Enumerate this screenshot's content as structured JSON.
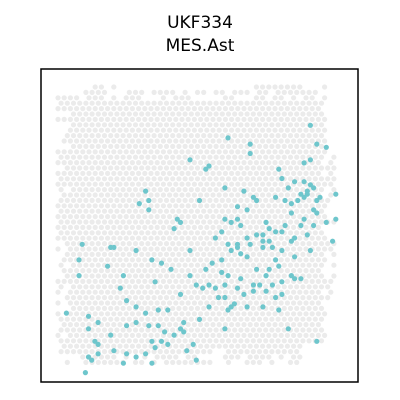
{
  "chart_data": {
    "type": "scatter",
    "title": "UKF334",
    "subtitle": "MES.Ast",
    "xlabel": "",
    "ylabel": "",
    "grid": false,
    "xlim": [
      0,
      100
    ],
    "ylim": [
      0,
      100
    ],
    "colors": {
      "background_spots": "#ebebeb",
      "highlight_spots": "#6ec6cc",
      "frame": "#000000"
    },
    "highlighted_spots": [
      [
        59,
        78
      ],
      [
        80,
        64
      ],
      [
        84,
        60
      ],
      [
        66,
        73
      ],
      [
        31,
        57
      ],
      [
        62,
        56
      ],
      [
        50,
        58
      ],
      [
        34,
        55
      ],
      [
        42,
        49
      ],
      [
        13,
        44
      ],
      [
        22,
        43
      ],
      [
        12,
        39
      ],
      [
        23,
        43
      ],
      [
        38,
        38
      ],
      [
        75,
        68
      ],
      [
        83,
        70
      ],
      [
        79,
        57
      ],
      [
        36,
        32
      ],
      [
        12,
        34
      ],
      [
        26,
        34
      ],
      [
        30,
        24
      ],
      [
        37,
        23
      ],
      [
        47,
        42
      ],
      [
        70,
        47
      ],
      [
        65,
        55
      ],
      [
        63,
        50
      ],
      [
        71,
        51
      ],
      [
        72,
        49
      ],
      [
        70,
        45
      ],
      [
        74,
        48
      ],
      [
        77,
        50
      ],
      [
        79,
        54
      ],
      [
        86,
        50
      ],
      [
        80,
        46
      ],
      [
        58,
        52
      ],
      [
        62,
        52
      ],
      [
        60,
        51
      ],
      [
        57,
        48
      ],
      [
        55,
        46
      ],
      [
        54,
        38
      ],
      [
        52,
        36
      ],
      [
        57,
        35
      ],
      [
        53,
        31
      ],
      [
        62,
        30
      ],
      [
        59,
        34
      ],
      [
        68,
        36
      ],
      [
        72,
        36
      ],
      [
        74,
        39
      ],
      [
        69,
        31
      ],
      [
        63,
        33
      ],
      [
        65,
        40
      ],
      [
        73,
        31
      ],
      [
        76,
        32
      ],
      [
        67,
        31
      ],
      [
        60,
        42
      ],
      [
        62,
        43
      ],
      [
        56,
        27
      ],
      [
        64,
        28
      ],
      [
        61,
        25
      ],
      [
        59,
        23
      ],
      [
        53,
        24
      ],
      [
        58,
        17
      ],
      [
        50,
        20
      ],
      [
        45,
        19
      ],
      [
        42,
        15
      ],
      [
        38,
        13
      ],
      [
        35,
        13
      ],
      [
        27,
        9
      ],
      [
        23,
        10
      ],
      [
        18,
        9
      ],
      [
        16,
        7
      ],
      [
        15,
        8
      ],
      [
        22,
        15
      ],
      [
        18,
        19
      ],
      [
        15,
        17
      ],
      [
        27,
        18
      ],
      [
        30,
        19
      ],
      [
        39,
        16
      ],
      [
        44,
        17
      ],
      [
        46,
        10
      ],
      [
        48,
        12
      ],
      [
        45,
        16
      ],
      [
        34,
        18
      ],
      [
        40,
        12
      ],
      [
        37,
        18
      ],
      [
        40,
        23
      ],
      [
        33,
        22
      ],
      [
        36,
        11
      ],
      [
        33,
        9
      ],
      [
        30,
        8
      ],
      [
        26,
        6
      ],
      [
        35,
        6
      ],
      [
        49,
        7
      ],
      [
        27,
        26
      ],
      [
        25,
        30
      ],
      [
        21,
        37
      ],
      [
        15,
        21
      ],
      [
        18,
        12
      ],
      [
        17,
        13
      ],
      [
        14,
        3
      ],
      [
        8,
        22
      ],
      [
        83,
        59
      ],
      [
        83,
        64
      ],
      [
        84,
        61
      ],
      [
        82,
        60
      ],
      [
        81,
        58
      ],
      [
        74,
        59
      ],
      [
        76,
        65
      ],
      [
        78,
        62
      ],
      [
        77,
        58
      ],
      [
        86,
        62
      ],
      [
        85,
        63
      ],
      [
        87,
        58
      ],
      [
        88,
        59
      ],
      [
        87,
        54
      ],
      [
        86,
        55
      ],
      [
        83,
        52
      ],
      [
        82,
        50
      ],
      [
        84,
        47
      ],
      [
        85,
        42
      ],
      [
        79,
        45
      ],
      [
        80,
        40
      ],
      [
        76,
        42
      ],
      [
        79,
        34
      ],
      [
        80,
        33
      ],
      [
        82,
        33
      ],
      [
        75,
        37
      ],
      [
        71,
        34
      ],
      [
        70,
        43
      ],
      [
        68,
        47
      ],
      [
        90,
        51
      ],
      [
        92,
        45
      ],
      [
        93,
        60
      ],
      [
        93,
        52
      ],
      [
        90,
        75
      ],
      [
        85,
        71
      ],
      [
        87,
        76
      ],
      [
        85,
        82
      ],
      [
        66,
        76
      ],
      [
        52,
        68
      ],
      [
        47,
        71
      ],
      [
        53,
        69
      ],
      [
        58,
        62
      ],
      [
        64,
        61
      ],
      [
        67,
        59
      ],
      [
        68,
        58
      ],
      [
        76,
        48
      ],
      [
        66,
        44
      ],
      [
        62,
        44
      ],
      [
        57,
        39
      ],
      [
        58,
        31
      ],
      [
        72,
        45
      ],
      [
        73,
        43
      ],
      [
        63,
        41
      ],
      [
        58,
        27
      ],
      [
        60,
        24
      ],
      [
        65,
        24
      ],
      [
        55,
        30
      ],
      [
        49,
        31
      ],
      [
        67,
        29
      ],
      [
        71,
        29
      ],
      [
        74,
        27
      ],
      [
        76,
        28
      ],
      [
        70,
        24
      ],
      [
        75,
        23
      ],
      [
        78,
        17
      ],
      [
        87,
        13
      ],
      [
        44,
        28
      ],
      [
        51,
        30
      ],
      [
        47,
        34
      ],
      [
        41,
        36
      ],
      [
        35,
        39
      ],
      [
        30,
        42
      ],
      [
        43,
        52
      ],
      [
        44,
        51
      ],
      [
        33,
        61
      ],
      [
        34,
        58
      ],
      [
        65,
        46
      ],
      [
        59,
        44
      ]
    ]
  }
}
